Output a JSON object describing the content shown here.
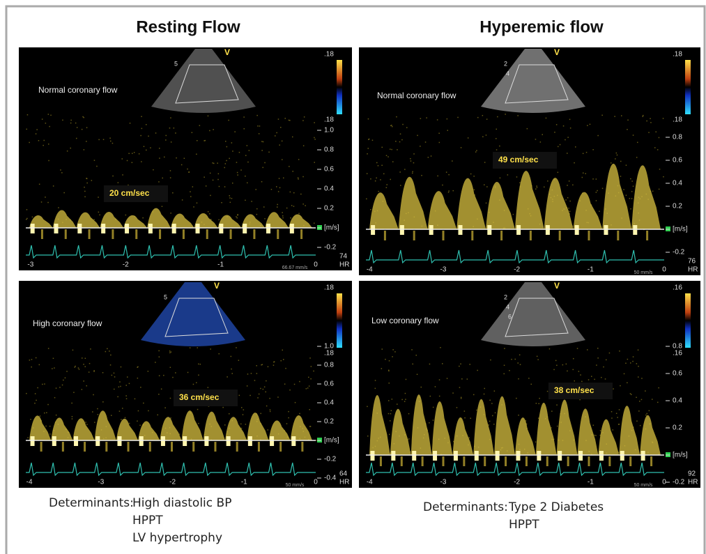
{
  "header": {
    "left_title": "Resting Flow",
    "right_title": "Hyperemic flow"
  },
  "panels": [
    {
      "label": "Normal coronary flow",
      "velocity": "20 cm/sec",
      "scale_top": ".18",
      "scale_bottom": ".18",
      "sector_mark": "V",
      "depth": [
        "5"
      ],
      "y_axis": [
        "1.0",
        "0.8",
        "0.6",
        "0.4",
        "0.2",
        "[m/s]",
        "-0.2"
      ],
      "x_axis": [
        "-3",
        "-2",
        "-1",
        "0"
      ],
      "hr": "74",
      "hr_label": "HR",
      "sweep": "66.67 mm/s"
    },
    {
      "label": "Normal coronary flow",
      "velocity": "49 cm/sec",
      "scale_top": ".18",
      "scale_bottom": ".18",
      "sector_mark": "V",
      "depth": [
        "2",
        "4"
      ],
      "y_axis": [
        "0.8",
        "0.6",
        "0.4",
        "0.2",
        "[m/s]",
        "-0.2"
      ],
      "x_axis": [
        "-4",
        "-3",
        "-2",
        "-1",
        "0"
      ],
      "hr": "76",
      "hr_label": "HR",
      "sweep": "50 mm/s"
    },
    {
      "label": "High  coronary flow",
      "velocity": "36 cm/sec",
      "scale_top": ".18",
      "scale_bottom": ".18",
      "sector_mark": "V",
      "depth": [
        "5"
      ],
      "y_axis": [
        "1.0",
        "0.8",
        "0.6",
        "0.4",
        "0.2",
        "[m/s]",
        "-0.2",
        "-0.4"
      ],
      "x_axis": [
        "-4",
        "-3",
        "-2",
        "-1",
        "0"
      ],
      "hr": "64",
      "hr_label": "HR",
      "sweep": "50 mm/s"
    },
    {
      "label": "Low coronary flow",
      "velocity": "38 cm/sec",
      "scale_top": ".16",
      "scale_bottom": ".16",
      "sector_mark": "V",
      "depth": [
        "2",
        "4",
        "6"
      ],
      "y_axis": [
        "0.8",
        "0.6",
        "0.4",
        "0.2",
        "[m/s]",
        "-0.2"
      ],
      "x_axis": [
        "-4",
        "-3",
        "-2",
        "-1",
        "0"
      ],
      "hr": "92",
      "hr_label": "HR",
      "sweep": "50 mm/s"
    }
  ],
  "determinants": [
    {
      "label": "Determinants:",
      "items": [
        "High diastolic BP",
        "HPPT",
        "LV hypertrophy"
      ]
    },
    {
      "label": "Determinants:",
      "items": [
        "Type 2 Diabetes",
        "HPPT"
      ]
    }
  ]
}
